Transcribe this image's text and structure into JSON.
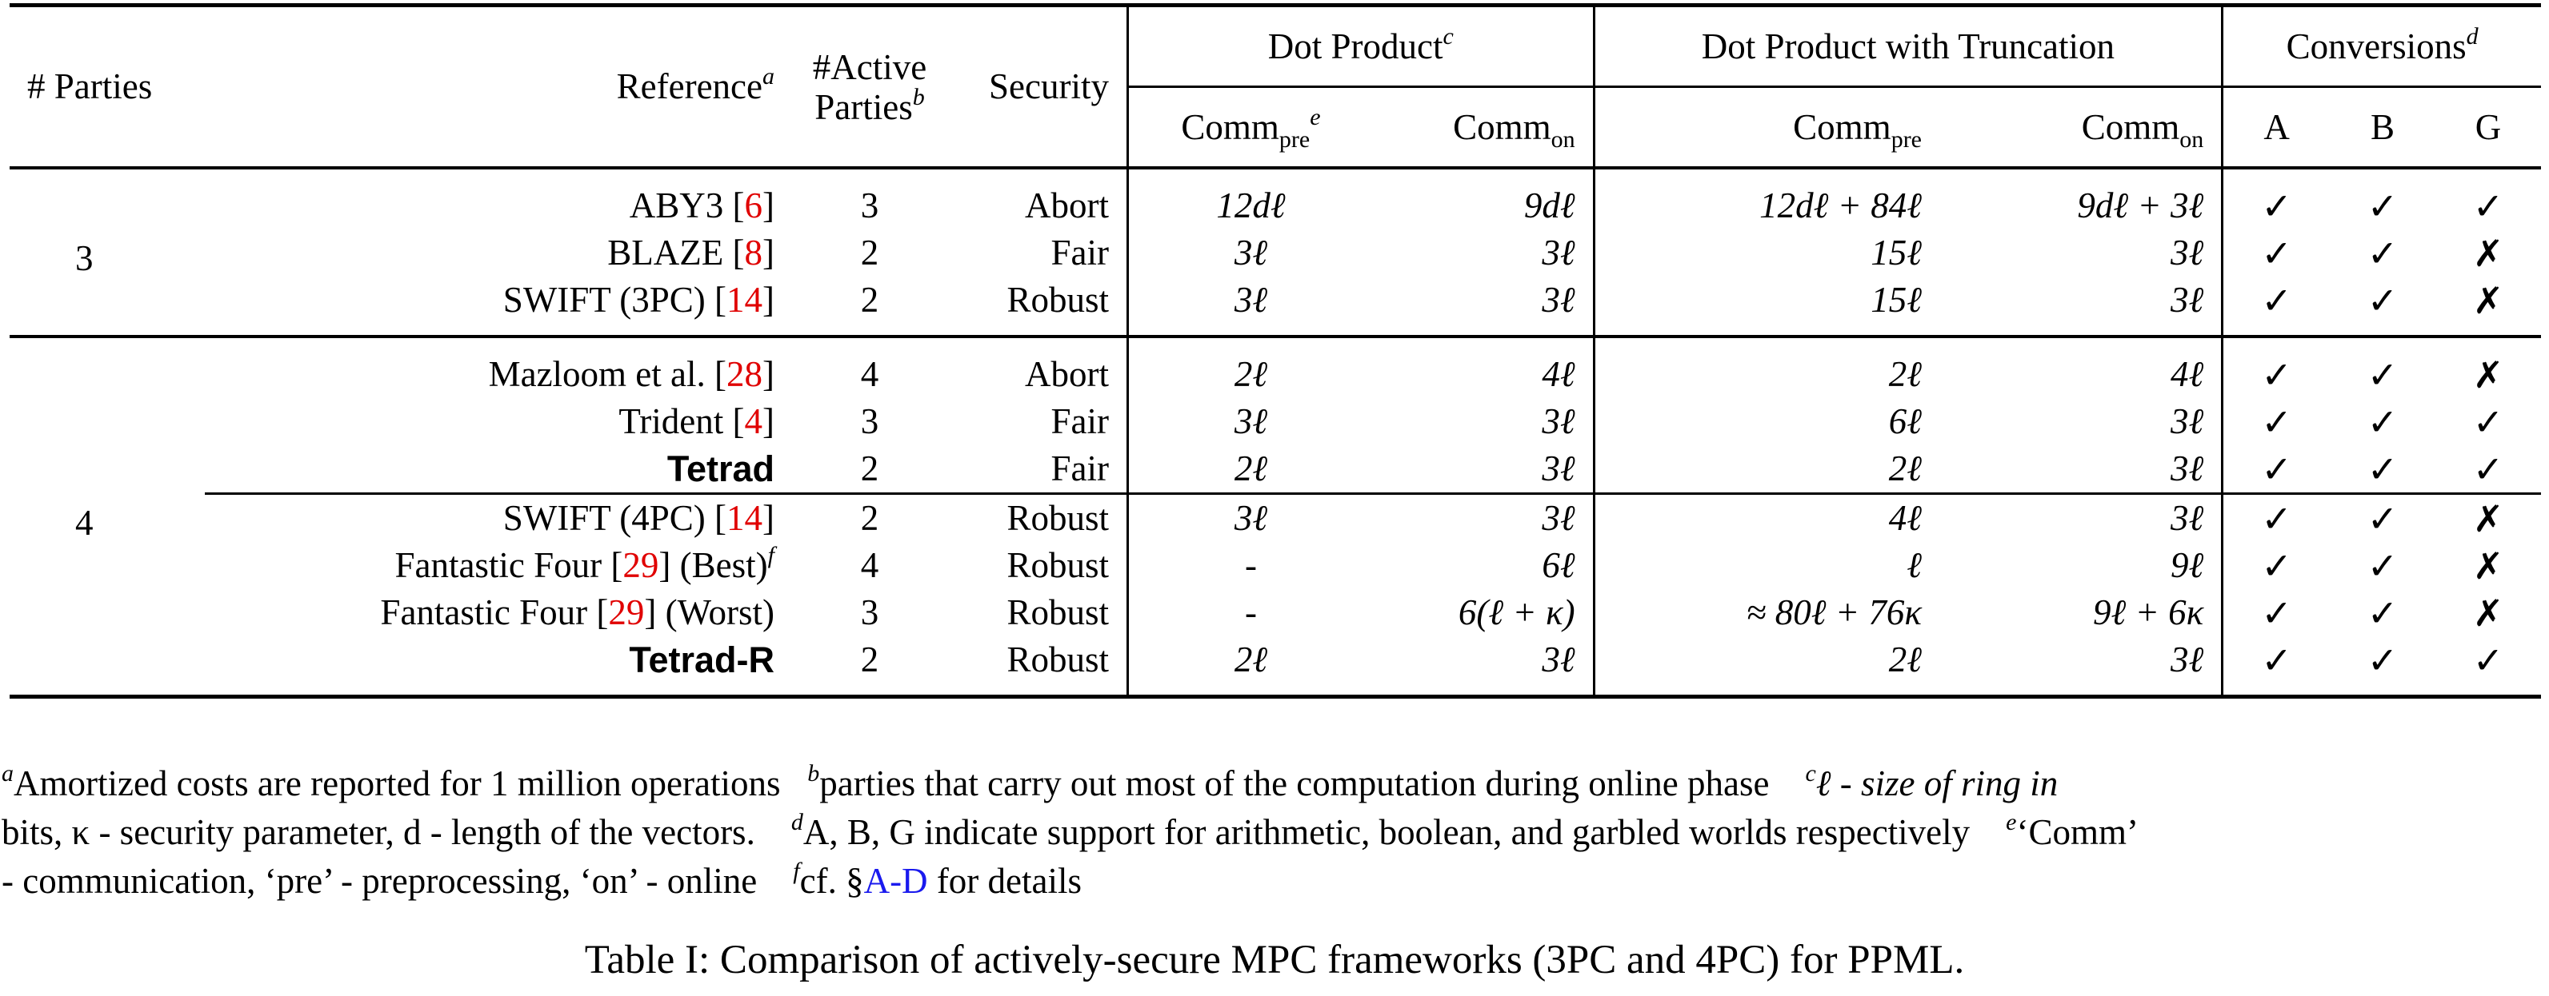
{
  "table": {
    "headers": {
      "parties": "# Parties",
      "reference": "Reference",
      "reference_mark": "a",
      "active_line1": "#Active",
      "active_line2": "Parties",
      "active_mark": "b",
      "security": "Security",
      "dot_product": "Dot Product",
      "dot_product_mark": "c",
      "dot_trunc": "Dot Product with Truncation",
      "conversions": "Conversions",
      "conversions_mark": "d",
      "comm": "Comm",
      "pre": "pre",
      "on": "on",
      "pre_mark": "e",
      "conv_a": "A",
      "conv_b": "B",
      "conv_g": "G"
    },
    "groups": [
      {
        "parties": "3",
        "rows": [
          {
            "ref": "ABY3",
            "cite": "6",
            "suffix": "",
            "suffix_mark": "",
            "bold": false,
            "active": "3",
            "security": "Abort",
            "dp_pre": "12dℓ",
            "dp_on": "9dℓ",
            "dt_pre": "12dℓ + 84ℓ",
            "dt_on": "9dℓ + 3ℓ",
            "a": "✓",
            "b": "✓",
            "g": "✓"
          },
          {
            "ref": "BLAZE",
            "cite": "8",
            "suffix": "",
            "suffix_mark": "",
            "bold": false,
            "active": "2",
            "security": "Fair",
            "dp_pre": "3ℓ",
            "dp_on": "3ℓ",
            "dt_pre": "15ℓ",
            "dt_on": "3ℓ",
            "a": "✓",
            "b": "✓",
            "g": "✗"
          },
          {
            "ref": "SWIFT  (3PC)",
            "cite": "14",
            "suffix": "",
            "suffix_mark": "",
            "bold": false,
            "active": "2",
            "security": "Robust",
            "dp_pre": "3ℓ",
            "dp_on": "3ℓ",
            "dt_pre": "15ℓ",
            "dt_on": "3ℓ",
            "a": "✓",
            "b": "✓",
            "g": "✗"
          }
        ]
      },
      {
        "parties": "4",
        "rows": [
          {
            "ref": "Mazloom et al.",
            "cite": "28",
            "suffix": "",
            "suffix_mark": "",
            "bold": false,
            "active": "4",
            "security": "Abort",
            "dp_pre": "2ℓ",
            "dp_on": "4ℓ",
            "dt_pre": "2ℓ",
            "dt_on": "4ℓ",
            "a": "✓",
            "b": "✓",
            "g": "✗"
          },
          {
            "ref": "Trident",
            "cite": "4",
            "suffix": "",
            "suffix_mark": "",
            "bold": false,
            "active": "3",
            "security": "Fair",
            "dp_pre": "3ℓ",
            "dp_on": "3ℓ",
            "dt_pre": "6ℓ",
            "dt_on": "3ℓ",
            "a": "✓",
            "b": "✓",
            "g": "✓"
          },
          {
            "ref": "Tetrad",
            "cite": "",
            "suffix": "",
            "suffix_mark": "",
            "bold": true,
            "active": "2",
            "security": "Fair",
            "dp_pre": "2ℓ",
            "dp_on": "3ℓ",
            "dt_pre": "2ℓ",
            "dt_on": "3ℓ",
            "a": "✓",
            "b": "✓",
            "g": "✓"
          },
          {
            "ref": "SWIFT (4PC)",
            "cite": "14",
            "suffix": "",
            "suffix_mark": "",
            "bold": false,
            "active": "2",
            "security": "Robust",
            "dp_pre": "3ℓ",
            "dp_on": "3ℓ",
            "dt_pre": "4ℓ",
            "dt_on": "3ℓ",
            "a": "✓",
            "b": "✓",
            "g": "✗"
          },
          {
            "ref": "Fantastic Four",
            "cite": "29",
            "suffix": "(Best)",
            "suffix_mark": "f",
            "bold": false,
            "active": "4",
            "security": "Robust",
            "dp_pre": "-",
            "dp_on": "6ℓ",
            "dt_pre": "ℓ",
            "dt_on": "9ℓ",
            "a": "✓",
            "b": "✓",
            "g": "✗"
          },
          {
            "ref": "Fantastic Four",
            "cite": "29",
            "suffix": "(Worst)",
            "suffix_mark": "",
            "bold": false,
            "active": "3",
            "security": "Robust",
            "dp_pre": "-",
            "dp_on": "6(ℓ + κ)",
            "dt_pre": "≈ 80ℓ + 76κ",
            "dt_on": "9ℓ + 6κ",
            "a": "✓",
            "b": "✓",
            "g": "✗"
          },
          {
            "ref": "Tetrad-R",
            "cite": "",
            "suffix": "",
            "suffix_mark": "",
            "bold": true,
            "active": "2",
            "security": "Robust",
            "dp_pre": "2ℓ",
            "dp_on": "3ℓ",
            "dt_pre": "2ℓ",
            "dt_on": "3ℓ",
            "a": "✓",
            "b": "✓",
            "g": "✓"
          }
        ]
      }
    ]
  },
  "footnotes": {
    "a_mark": "a",
    "a_text": "Amortized costs are reported for 1 million operations",
    "b_mark": "b",
    "b_text": "parties that carry out most of the computation during online phase",
    "c_mark": "c",
    "c_text_1": "ℓ - size of ring in",
    "c_text_2": "bits, κ - security parameter, d - length of the vectors.",
    "d_mark": "d",
    "d_text": "A, B, G indicate support for arithmetic, boolean, and garbled worlds respectively",
    "e_mark": "e",
    "e_text_1": "‘Comm’",
    "e_text_2": "- communication, ‘pre’ - preprocessing, ‘on’ - online",
    "f_mark": "f",
    "f_text_pre": "cf. §",
    "f_link": "A-D",
    "f_text_post": " for details"
  },
  "caption": "Table I: Comparison of actively-secure MPC frameworks (3PC and 4PC) for PPML.",
  "colors": {
    "citation": "#e00000",
    "link": "#1a1aee"
  }
}
